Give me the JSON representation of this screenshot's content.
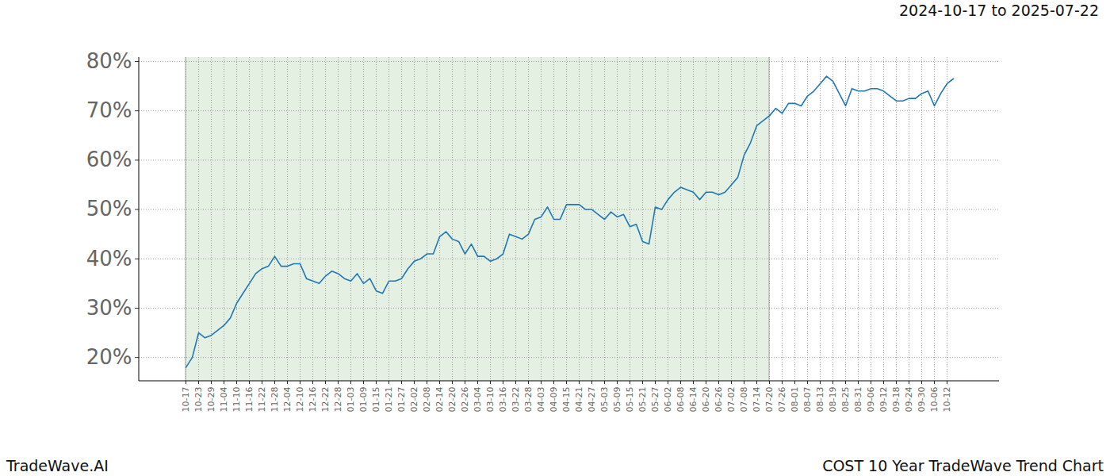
{
  "chart_data": {
    "type": "line",
    "title": "COST 10 Year TradeWave Trend Chart",
    "subtitle": "2024-10-17 to 2025-07-22",
    "caption": "TradeWave.AI",
    "categories": [
      "10-17",
      null,
      "10-23",
      null,
      "10-29",
      null,
      "11-04",
      null,
      "11-10",
      null,
      "11-16",
      null,
      "11-22",
      null,
      "11-28",
      null,
      "12-04",
      null,
      "12-10",
      null,
      "12-16",
      null,
      "12-22",
      null,
      "12-28",
      null,
      "01-03",
      null,
      "01-09",
      null,
      "01-15",
      null,
      "01-21",
      null,
      "01-27",
      null,
      "02-02",
      null,
      "02-08",
      null,
      "02-14",
      null,
      "02-20",
      null,
      "02-26",
      null,
      "03-04",
      null,
      "03-10",
      null,
      "03-16",
      null,
      "03-22",
      null,
      "03-28",
      null,
      "04-03",
      null,
      "04-09",
      null,
      "04-15",
      null,
      "04-21",
      null,
      "04-27",
      null,
      "05-03",
      null,
      "05-09",
      null,
      "05-15",
      null,
      "05-21",
      null,
      "05-27",
      null,
      "06-02",
      null,
      "06-08",
      null,
      "06-14",
      null,
      "06-20",
      null,
      "06-26",
      null,
      "07-02",
      null,
      "07-08",
      null,
      "07-14",
      null,
      "07-20",
      null,
      "07-26",
      null,
      "08-01",
      null,
      "08-07",
      null,
      "08-13",
      null,
      "08-19",
      null,
      "08-25",
      null,
      "08-31",
      null,
      "09-06",
      null,
      "09-12",
      null,
      "09-18",
      null,
      "09-24",
      null,
      "09-30",
      null,
      "10-06",
      null,
      "10-12",
      null
    ],
    "values": [
      18,
      20,
      25,
      24,
      24.5,
      25.5,
      26.5,
      28,
      31,
      33,
      35,
      37,
      38,
      38.5,
      40.5,
      38.5,
      38.5,
      39,
      39,
      36,
      35.5,
      35,
      36.5,
      37.5,
      37,
      36,
      35.5,
      37,
      35,
      36,
      33.5,
      33,
      35.5,
      35.5,
      36,
      38,
      39.5,
      40,
      41,
      41,
      44.5,
      45.5,
      44,
      43.5,
      41,
      43,
      40.5,
      40.5,
      39.5,
      40,
      41,
      45,
      44.5,
      44,
      45,
      48,
      48.5,
      50.5,
      48,
      48,
      51,
      51,
      51,
      50,
      50,
      49,
      48,
      49.5,
      48.5,
      49,
      46.5,
      47,
      43.5,
      43,
      50.5,
      50,
      52,
      53.5,
      54.5,
      54,
      53.5,
      52,
      53.5,
      53.5,
      53,
      53.5,
      55,
      56.5,
      61,
      63.5,
      67,
      68,
      69,
      70.5,
      69.5,
      71.5,
      71.5,
      71,
      73,
      74,
      75.5,
      77,
      76,
      73.5,
      71,
      74.5,
      74,
      74,
      74.5,
      74.5,
      74,
      73,
      72,
      72,
      72.5,
      72.5,
      73.5,
      74,
      71,
      73.5,
      75.5,
      76.5
    ],
    "color": "#1f77b4",
    "ylim": [
      15.2,
      80.8
    ],
    "yticks": [
      {
        "value": 20,
        "label": "20%"
      },
      {
        "value": 30,
        "label": "30%"
      },
      {
        "value": 40,
        "label": "40%"
      },
      {
        "value": 50,
        "label": "50%"
      },
      {
        "value": 60,
        "label": "60%"
      },
      {
        "value": 70,
        "label": "70%"
      },
      {
        "value": 80,
        "label": "80%"
      }
    ],
    "grid": true,
    "highlight": [
      "10-17",
      "07-20"
    ]
  }
}
